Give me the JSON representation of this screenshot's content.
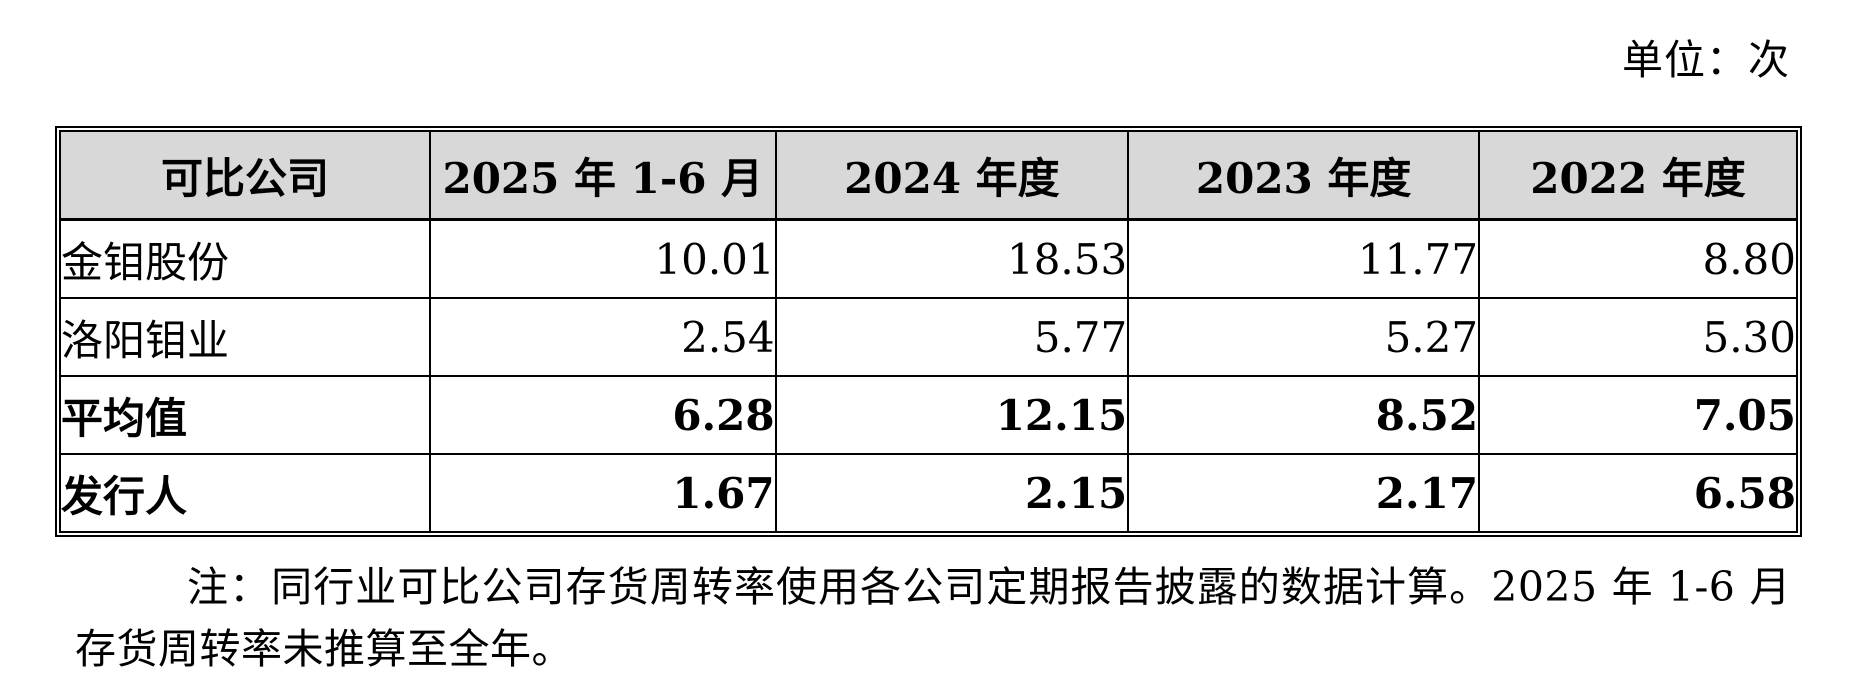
{
  "unit_label": "单位：次",
  "table": {
    "columns": [
      "可比公司",
      "2025 年 1-6 月",
      "2024 年度",
      "2023 年度",
      "2022 年度"
    ],
    "rows": [
      {
        "name": "金钼股份",
        "values": [
          "10.01",
          "18.53",
          "11.77",
          "8.80"
        ],
        "bold": false
      },
      {
        "name": "洛阳钼业",
        "values": [
          "2.54",
          "5.77",
          "5.27",
          "5.30"
        ],
        "bold": false
      },
      {
        "name": "平均值",
        "values": [
          "6.28",
          "12.15",
          "8.52",
          "7.05"
        ],
        "bold": true
      },
      {
        "name": "发行人",
        "values": [
          "1.67",
          "2.15",
          "2.17",
          "6.58"
        ],
        "bold": true
      }
    ]
  },
  "note": "注：同行业可比公司存货周转率使用各公司定期报告披露的数据计算。2025 年 1-6 月存货周转率未推算至全年。",
  "colors": {
    "header_bg": "#d8d8d8",
    "border": "#000000",
    "text": "#000000",
    "page_bg": "#ffffff"
  }
}
